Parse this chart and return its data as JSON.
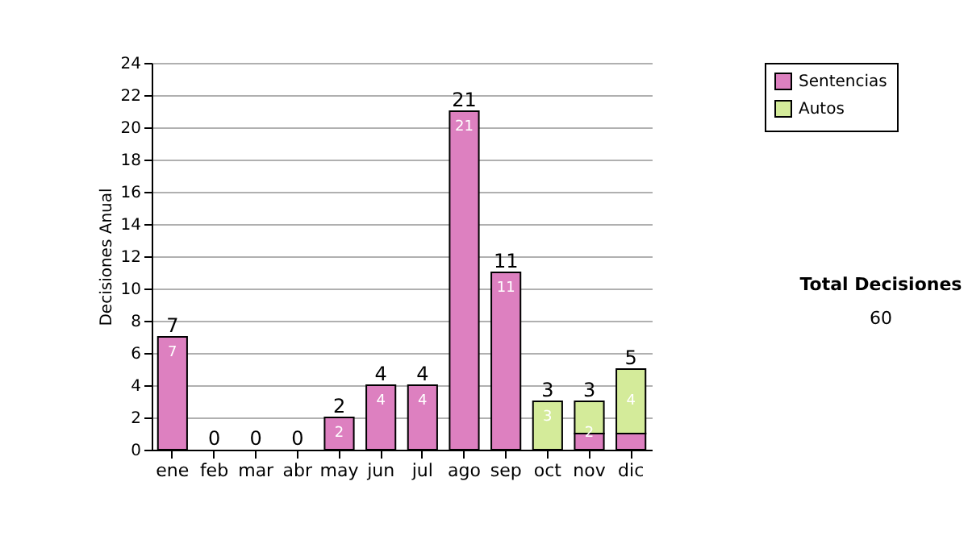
{
  "chart_data": {
    "type": "bar",
    "stacked": true,
    "ylabel": "Decisiones Anual",
    "categories": [
      "ene",
      "feb",
      "mar",
      "abr",
      "may",
      "jun",
      "jul",
      "ago",
      "sep",
      "oct",
      "nov",
      "dic"
    ],
    "series": [
      {
        "name": "Sentencias",
        "color": "#dd80c0",
        "values": [
          7,
          0,
          0,
          0,
          2,
          4,
          4,
          21,
          11,
          0,
          1,
          1
        ],
        "value_labels": [
          "7",
          null,
          null,
          null,
          "2",
          "4",
          "4",
          "21",
          "11",
          null,
          null,
          null
        ]
      },
      {
        "name": "Autos",
        "color": "#d4eb9a",
        "values": [
          0,
          0,
          0,
          0,
          0,
          0,
          0,
          0,
          0,
          3,
          2,
          4
        ],
        "value_labels": [
          null,
          null,
          null,
          null,
          null,
          null,
          null,
          null,
          null,
          "3",
          "2",
          "4"
        ]
      }
    ],
    "totals": [
      "7",
      "0",
      "0",
      "0",
      "2",
      "4",
      "4",
      "21",
      "11",
      "3",
      "3",
      "5"
    ],
    "ylim": [
      0,
      24
    ],
    "yticks": [
      0,
      2,
      4,
      6,
      8,
      10,
      12,
      14,
      16,
      18,
      20,
      22,
      24
    ],
    "grid": "y",
    "legend": "right",
    "annotations": [
      "Total Decisiones",
      "60"
    ]
  }
}
